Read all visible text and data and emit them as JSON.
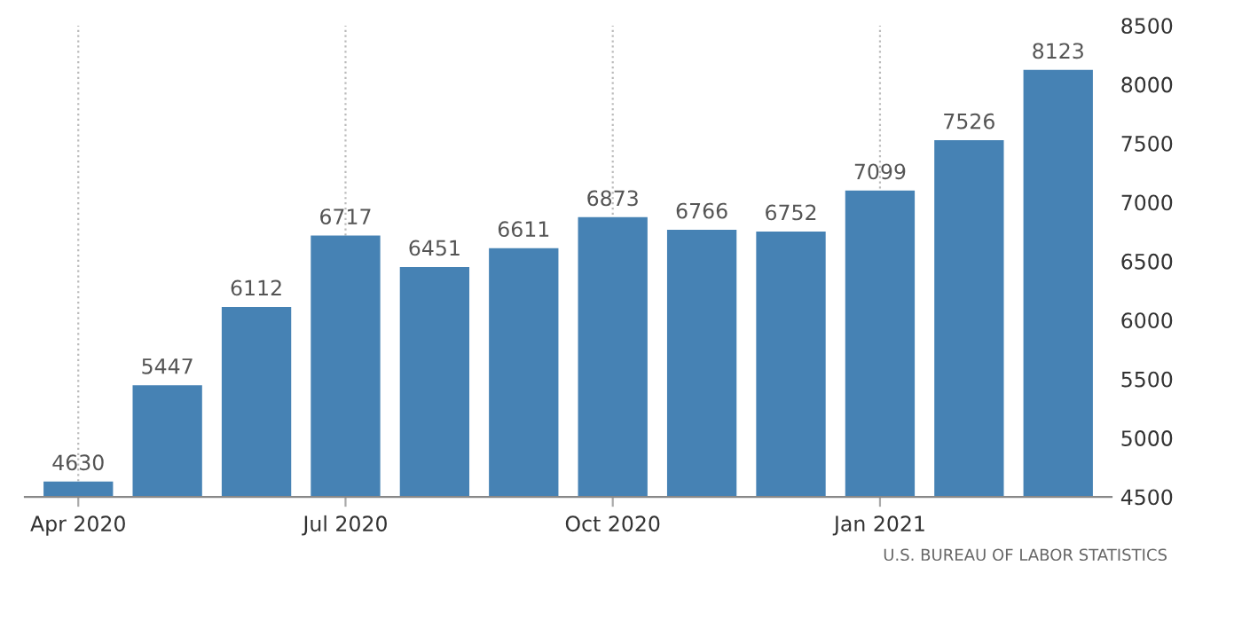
{
  "chart_data": {
    "type": "bar",
    "categories": [
      "Apr 2020",
      null,
      null,
      "Jul 2020",
      null,
      null,
      "Oct 2020",
      null,
      null,
      "Jan 2021",
      null,
      null
    ],
    "values": [
      4630,
      5447,
      6112,
      6717,
      6451,
      6611,
      6873,
      6766,
      6752,
      7099,
      7526,
      8123
    ],
    "color": "#4682b4",
    "data_labels": true,
    "ylim": [
      4500,
      8500
    ],
    "yticks": [
      4500,
      5000,
      5500,
      6000,
      6500,
      7000,
      7500,
      8000,
      8500
    ],
    "grid": "x",
    "annotations": [
      "U.S. BUREAU OF LABOR STATISTICS"
    ]
  }
}
